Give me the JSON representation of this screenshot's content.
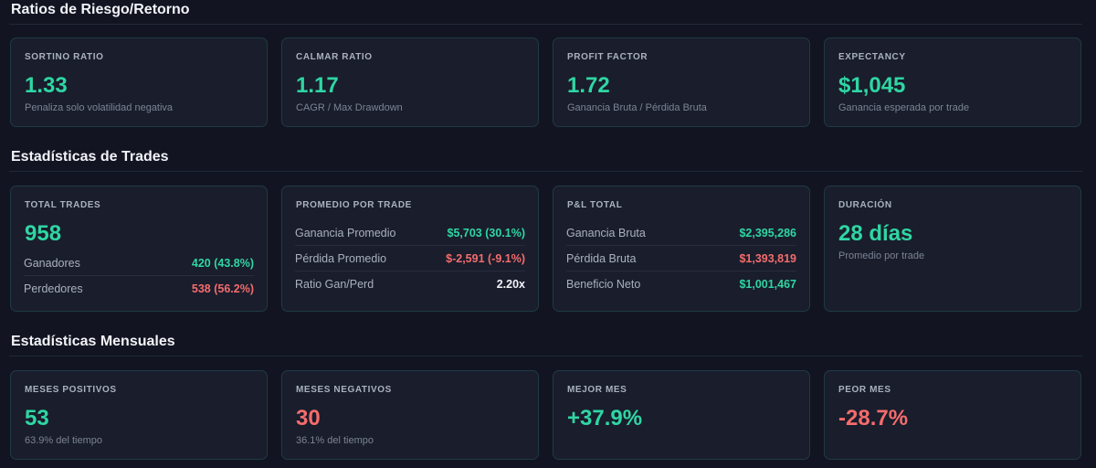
{
  "sections": {
    "risk": {
      "title": "Ratios de Riesgo/Retorno",
      "cards": [
        {
          "label": "SORTINO RATIO",
          "value": "1.33",
          "sub": "Penaliza solo volatilidad negativa"
        },
        {
          "label": "CALMAR RATIO",
          "value": "1.17",
          "sub": "CAGR / Max Drawdown"
        },
        {
          "label": "PROFIT FACTOR",
          "value": "1.72",
          "sub": "Ganancia Bruta / Pérdida Bruta"
        },
        {
          "label": "EXPECTANCY",
          "value": "$1,045",
          "sub": "Ganancia esperada por trade"
        }
      ]
    },
    "trades": {
      "title": "Estadísticas de Trades",
      "total": {
        "label": "TOTAL TRADES",
        "value": "958",
        "rows": [
          {
            "label": "Ganadores",
            "value": "420 (43.8%)"
          },
          {
            "label": "Perdedores",
            "value": "538 (56.2%)"
          }
        ]
      },
      "average": {
        "label": "PROMEDIO POR TRADE",
        "rows": [
          {
            "label": "Ganancia Promedio",
            "value": "$5,703 (30.1%)"
          },
          {
            "label": "Pérdida Promedio",
            "value": "$-2,591 (-9.1%)"
          },
          {
            "label": "Ratio Gan/Perd",
            "value": "2.20x"
          }
        ]
      },
      "pnl": {
        "label": "P&L TOTAL",
        "rows": [
          {
            "label": "Ganancia Bruta",
            "value": "$2,395,286"
          },
          {
            "label": "Pérdida Bruta",
            "value": "$1,393,819"
          },
          {
            "label": "Beneficio Neto",
            "value": "$1,001,467"
          }
        ]
      },
      "duration": {
        "label": "DURACIÓN",
        "value": "28 días",
        "sub": "Promedio por trade"
      }
    },
    "monthly": {
      "title": "Estadísticas Mensuales",
      "cards": [
        {
          "label": "MESES POSITIVOS",
          "value": "53",
          "sub": "63.9% del tiempo"
        },
        {
          "label": "MESES NEGATIVOS",
          "value": "30",
          "sub": "36.1% del tiempo"
        },
        {
          "label": "MEJOR MES",
          "value": "+37.9%"
        },
        {
          "label": "PEOR MES",
          "value": "-28.7%"
        }
      ]
    }
  },
  "colors": {
    "positive": "#2fd6a3",
    "negative": "#f46c6c",
    "background": "#121521",
    "card": "#191d2c"
  }
}
